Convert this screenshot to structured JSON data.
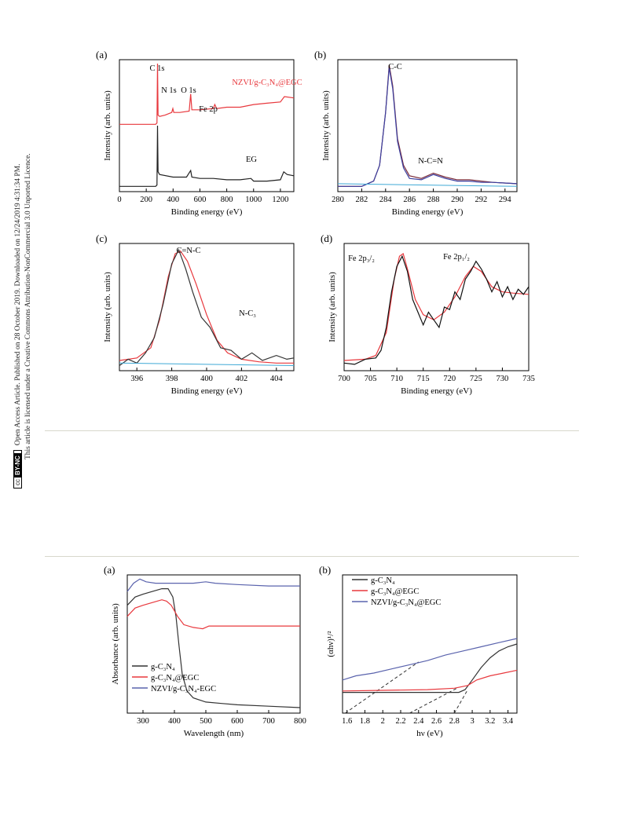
{
  "sidebar": {
    "access_line": "Open Access Article. Published on 28 October 2019. Downloaded on 12/24/2019 4:31:34 PM.",
    "license_line": "This article is licensed under a Creative Commons Attribution-NonCommercial 3.0 Unported Licence.",
    "cc_badge": "cc",
    "cc_badge_tag": "BY-NC"
  },
  "chart_data": [
    {
      "id": "xps-survey",
      "type": "line",
      "panel_label": "(a)",
      "xlabel": "Binding energy (eV)",
      "ylabel": "Intensity (arb. units)",
      "xlim": [
        0,
        1300
      ],
      "ylim": [
        0,
        100
      ],
      "xticks": [
        0,
        200,
        400,
        600,
        800,
        1000,
        1200
      ],
      "series": [
        {
          "name": "NZVI/g-C₃N₄@EGC",
          "color": "#e8383d",
          "x": [
            0,
            270,
            280,
            284,
            288,
            300,
            340,
            390,
            398,
            405,
            450,
            520,
            531,
            540,
            600,
            700,
            711,
            725,
            800,
            900,
            1000,
            1100,
            1200,
            1230,
            1300
          ],
          "y": [
            51,
            51,
            52,
            97,
            58,
            57,
            58,
            60,
            63,
            60,
            60,
            61,
            74,
            62,
            62,
            63,
            66,
            63,
            64,
            64,
            66,
            67,
            68,
            72,
            71
          ]
        },
        {
          "name": "EG",
          "color": "#222222",
          "x": [
            0,
            270,
            280,
            284,
            288,
            300,
            400,
            500,
            531,
            540,
            600,
            700,
            800,
            900,
            980,
            1000,
            1100,
            1200,
            1225,
            1250,
            1300
          ],
          "y": [
            4,
            4,
            5,
            50,
            15,
            13,
            11,
            11,
            16,
            11,
            10,
            10,
            9,
            9,
            10,
            8,
            8,
            9,
            15,
            13,
            12
          ]
        }
      ],
      "annotations": [
        "C 1s",
        "O 1s",
        "N 1s",
        "Fe 2p",
        "NZVI/g-C₃N₄@EGC",
        "EG"
      ]
    },
    {
      "id": "c1s",
      "type": "line",
      "panel_label": "(b)",
      "xlabel": "Binding energy (eV)",
      "ylabel": "Intensity (arb. units)",
      "xlim": [
        280,
        295
      ],
      "ylim": [
        0,
        100
      ],
      "xticks": [
        280,
        282,
        284,
        286,
        288,
        290,
        292,
        294
      ],
      "series": [
        {
          "name": "",
          "color": "#7b2d3b",
          "x": [
            280,
            282,
            283,
            283.5,
            284,
            284.3,
            284.6,
            285,
            285.5,
            286,
            287,
            288,
            289,
            290,
            291,
            292,
            293,
            295
          ],
          "y": [
            4,
            4,
            8,
            20,
            60,
            96,
            80,
            40,
            20,
            12,
            10,
            14,
            11,
            9,
            9,
            8,
            7,
            6
          ]
        },
        {
          "name": "",
          "color": "#3b3fa0",
          "x": [
            280,
            282,
            283,
            283.5,
            284,
            284.3,
            284.6,
            285,
            285.5,
            286,
            287,
            288,
            289,
            290,
            291,
            292,
            293,
            295
          ],
          "y": [
            4,
            4,
            8,
            20,
            60,
            94,
            78,
            38,
            18,
            10,
            9,
            13,
            10,
            8,
            8,
            7,
            7,
            6
          ]
        }
      ],
      "annotations": [
        "C-C",
        "N-C=N"
      ]
    },
    {
      "id": "n1s",
      "type": "line",
      "panel_label": "(c)",
      "xlabel": "Binding energy (eV)",
      "ylabel": "Intensity (arb. units)",
      "xlim": [
        395,
        405
      ],
      "ylim": [
        0,
        100
      ],
      "xticks": [
        396,
        398,
        400,
        402,
        404
      ],
      "series": [
        {
          "name": "",
          "color": "#e8383d",
          "x": [
            395,
            396,
            396.8,
            397.3,
            397.8,
            398.2,
            398.5,
            398.9,
            399.4,
            400,
            400.6,
            401.2,
            402,
            403,
            404,
            405
          ],
          "y": [
            8,
            10,
            18,
            40,
            74,
            92,
            94,
            86,
            68,
            44,
            24,
            14,
            9,
            7,
            6,
            6
          ]
        },
        {
          "name": "",
          "color": "#333333",
          "x": [
            395,
            395.5,
            396,
            396.5,
            397,
            397.5,
            398,
            398.4,
            398.8,
            399.2,
            399.7,
            400.2,
            400.8,
            401.4,
            402,
            402.6,
            403.2,
            404,
            404.6,
            405
          ],
          "y": [
            4,
            9,
            6,
            14,
            26,
            52,
            84,
            95,
            80,
            62,
            42,
            34,
            18,
            16,
            9,
            14,
            8,
            12,
            9,
            10
          ]
        }
      ],
      "annotations": [
        "C=N-C",
        "N-C₃"
      ]
    },
    {
      "id": "fe2p",
      "type": "line",
      "panel_label": "(d)",
      "xlabel": "Binding energy (eV)",
      "ylabel": "Intensity (arb. units)",
      "xlim": [
        700,
        735
      ],
      "ylim": [
        0,
        100
      ],
      "xticks": [
        700,
        705,
        710,
        715,
        720,
        725,
        730,
        735
      ],
      "series": [
        {
          "name": "",
          "color": "#e8383d",
          "x": [
            700,
            704,
            706,
            708,
            709.5,
            710.5,
            711.2,
            712,
            713.5,
            715,
            717,
            719,
            721,
            723,
            724.5,
            726,
            728,
            730,
            732,
            735
          ],
          "y": [
            8,
            9,
            12,
            30,
            72,
            90,
            92,
            80,
            56,
            44,
            40,
            46,
            58,
            74,
            82,
            78,
            66,
            62,
            61,
            60
          ]
        },
        {
          "name": "",
          "color": "#111111",
          "x": [
            700,
            702,
            704,
            706,
            707,
            708,
            709,
            710,
            711,
            712,
            713,
            714,
            715,
            716,
            717,
            718,
            719,
            720,
            721,
            722,
            723,
            724,
            725,
            726,
            727,
            728,
            729,
            730,
            731,
            732,
            733,
            734,
            735
          ],
          "y": [
            6,
            5,
            9,
            10,
            16,
            34,
            62,
            82,
            90,
            78,
            56,
            46,
            36,
            46,
            40,
            34,
            50,
            48,
            62,
            56,
            72,
            78,
            86,
            80,
            72,
            62,
            70,
            58,
            66,
            56,
            64,
            60,
            66
          ]
        }
      ],
      "annotations": [
        "Fe 2p₃/₂",
        "Fe 2p₁/₂"
      ]
    },
    {
      "id": "uv-vis",
      "type": "line",
      "panel_label": "(a)",
      "xlabel": "Wavelength (nm)",
      "ylabel": "Absorbance (arb. units)",
      "xlim": [
        250,
        800
      ],
      "ylim": [
        0,
        100
      ],
      "xticks": [
        300,
        400,
        500,
        600,
        700,
        800
      ],
      "series": [
        {
          "name": "g-C₃N₄",
          "color": "#333333",
          "x": [
            250,
            275,
            300,
            330,
            360,
            380,
            395,
            405,
            415,
            425,
            440,
            460,
            500,
            550,
            600,
            700,
            800
          ],
          "y": [
            78,
            84,
            86,
            88,
            90,
            90,
            84,
            70,
            48,
            28,
            16,
            11,
            8,
            7,
            6,
            5,
            4
          ]
        },
        {
          "name": "g-C₃N₄@EGC",
          "color": "#e8383d",
          "x": [
            250,
            275,
            300,
            330,
            360,
            375,
            390,
            410,
            430,
            460,
            490,
            510,
            550,
            600,
            700,
            800
          ],
          "y": [
            70,
            76,
            78,
            80,
            82,
            81,
            78,
            70,
            64,
            62,
            61,
            63,
            63,
            63,
            63,
            63
          ]
        },
        {
          "name": "NZVI/g-C₃N₄-EGC",
          "color": "#5a63ad",
          "x": [
            250,
            270,
            290,
            310,
            340,
            380,
            420,
            460,
            500,
            530,
            600,
            700,
            800
          ],
          "y": [
            88,
            94,
            97,
            95,
            94,
            94,
            94,
            94,
            95,
            94,
            93,
            92,
            92
          ]
        }
      ]
    },
    {
      "id": "tauc",
      "type": "line",
      "panel_label": "(b)",
      "xlabel": "hν (eV)",
      "ylabel": "(αhν)¹/²",
      "xlim": [
        1.55,
        3.5
      ],
      "ylim": [
        0,
        100
      ],
      "xticks": [
        1.6,
        1.8,
        2.0,
        2.2,
        2.4,
        2.6,
        2.8,
        3.0,
        3.2,
        3.4
      ],
      "series": [
        {
          "name": "g-C₃N₄",
          "color": "#333333",
          "x": [
            1.55,
            2.0,
            2.5,
            2.85,
            2.92,
            3.0,
            3.1,
            3.2,
            3.3,
            3.4,
            3.5
          ],
          "y": [
            15,
            15,
            15,
            15,
            17,
            24,
            33,
            40,
            45,
            48,
            50
          ]
        },
        {
          "name": "g-C₃N₄@EGC",
          "color": "#e8383d",
          "x": [
            1.55,
            2.0,
            2.5,
            2.8,
            2.95,
            3.05,
            3.2,
            3.35,
            3.5
          ],
          "y": [
            16,
            16.5,
            17,
            18,
            20,
            24,
            27,
            29,
            31
          ]
        },
        {
          "name": "NZVI/g-C₃N₄@EGC",
          "color": "#5a63ad",
          "x": [
            1.55,
            1.7,
            1.9,
            2.1,
            2.3,
            2.5,
            2.7,
            2.9,
            3.1,
            3.3,
            3.5
          ],
          "y": [
            24,
            27,
            29,
            32,
            35,
            38,
            42,
            45,
            48,
            51,
            54
          ]
        }
      ],
      "tangent_lines": [
        {
          "x": [
            1.58,
            2.4
          ],
          "y": [
            0,
            37
          ]
        },
        {
          "x": [
            2.3,
            2.83
          ],
          "y": [
            0,
            18
          ]
        },
        {
          "x": [
            2.8,
            2.95
          ],
          "y": [
            0,
            17
          ]
        }
      ]
    }
  ]
}
